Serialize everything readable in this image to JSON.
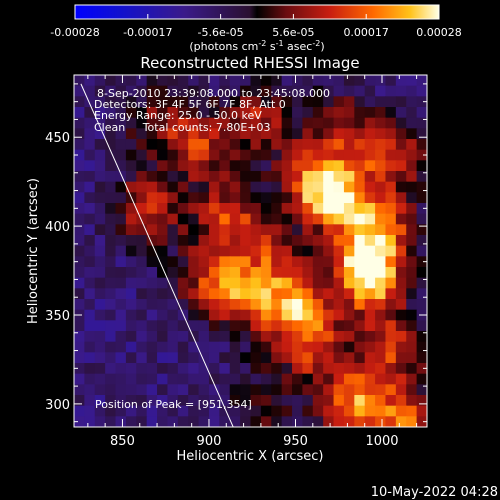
{
  "chart_data": {
    "type": "heatmap",
    "title": "Reconstructed RHESSI Image",
    "xlabel": "Heliocentric X (arcsec)",
    "ylabel": "Heliocentric Y (arcsec)",
    "xlim": [
      822,
      1026
    ],
    "ylim": [
      287,
      485
    ],
    "xticks": [
      850,
      900,
      950,
      1000
    ],
    "yticks": [
      300,
      350,
      400,
      450
    ],
    "colorbar": {
      "ticks": [
        "-0.00028",
        "-0.00017",
        "-5.6e-05",
        "5.6e-05",
        "0.00017",
        "0.00028"
      ],
      "unit_prefix": "(photons cm",
      "unit_exp1": "-2",
      "unit_mid": " s",
      "unit_exp2": "-1",
      "unit_mid2": " asec",
      "unit_exp3": "-2",
      "unit_suffix": ")",
      "range": [
        -0.00028,
        0.00028
      ]
    },
    "annotations": [
      "8-Sep-2010 23:39:08.000 to 23:45:08.000",
      "Detectors: 3F 4F 5F 6F 7F 8F, Att 0",
      "Energy Range: 25.0 - 50.0 keV",
      "Clean     Total counts: 7.80E+03"
    ],
    "peak_label": "Position of Peak = [951,354]",
    "peak": [
      951,
      354
    ],
    "limb_line": [
      [
        826,
        480
      ],
      [
        914,
        287
      ]
    ],
    "grid": {
      "cols": 34,
      "rows": 33,
      "pixel_arcsec": 6
    },
    "blobs": [
      {
        "x": 865,
        "y": 410,
        "v": 0.0002
      },
      {
        "x": 870,
        "y": 460,
        "v": 0.00012
      },
      {
        "x": 895,
        "y": 445,
        "v": 0.00018
      },
      {
        "x": 930,
        "y": 460,
        "v": 0.00016
      },
      {
        "x": 975,
        "y": 455,
        "v": 0.00015
      },
      {
        "x": 1005,
        "y": 440,
        "v": 0.0002
      },
      {
        "x": 960,
        "y": 425,
        "v": 0.00022
      },
      {
        "x": 975,
        "y": 415,
        "v": 0.00026
      },
      {
        "x": 1000,
        "y": 400,
        "v": 0.0002
      },
      {
        "x": 910,
        "y": 405,
        "v": 0.0002
      },
      {
        "x": 935,
        "y": 385,
        "v": 0.00015
      },
      {
        "x": 990,
        "y": 380,
        "v": 0.00024
      },
      {
        "x": 995,
        "y": 365,
        "v": 0.0002
      },
      {
        "x": 950,
        "y": 355,
        "v": 0.00028
      },
      {
        "x": 920,
        "y": 360,
        "v": 0.0002
      },
      {
        "x": 900,
        "y": 370,
        "v": 0.00016
      },
      {
        "x": 960,
        "y": 330,
        "v": 0.00018
      },
      {
        "x": 1005,
        "y": 330,
        "v": 0.00018
      },
      {
        "x": 985,
        "y": 300,
        "v": 0.00026
      },
      {
        "x": 930,
        "y": 300,
        "v": 0.0001
      },
      {
        "x": 1015,
        "y": 290,
        "v": 0.00022
      }
    ]
  },
  "footer": {
    "timestamp": "10-May-2022 04:28"
  }
}
